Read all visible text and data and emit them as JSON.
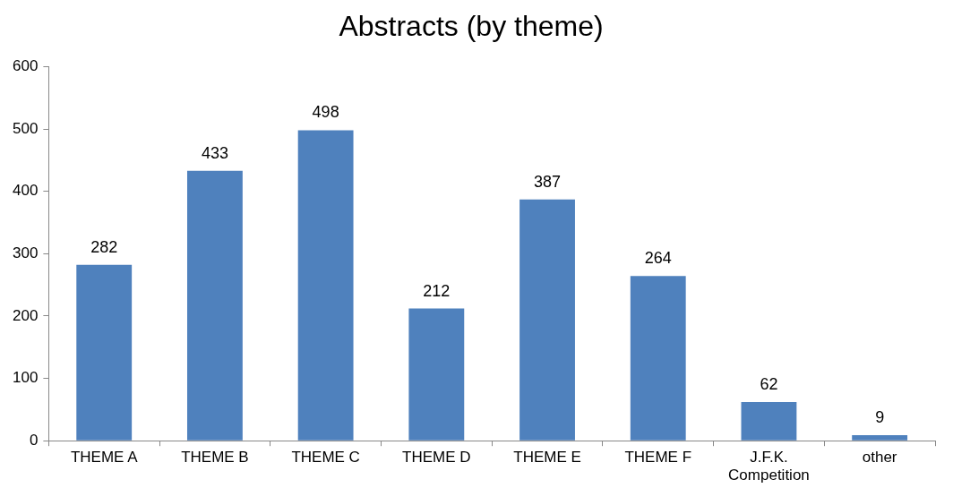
{
  "chart_data": {
    "type": "bar",
    "title": "Abstracts (by theme)",
    "categories": [
      "THEME A",
      "THEME B",
      "THEME C",
      "THEME D",
      "THEME E",
      "THEME F",
      "J.F.K. Competition",
      "other"
    ],
    "values": [
      282,
      433,
      498,
      212,
      387,
      264,
      62,
      9
    ],
    "color": "#4f81bd",
    "ylim": [
      0,
      600
    ],
    "yticks": [
      0,
      100,
      200,
      300,
      400,
      500,
      600
    ],
    "grid": false,
    "legend": false,
    "data_labels": true
  }
}
